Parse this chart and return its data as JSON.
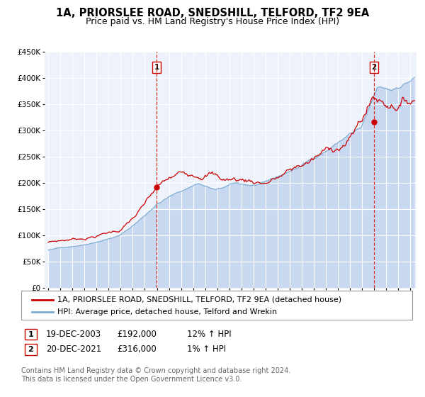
{
  "title": "1A, PRIORSLEE ROAD, SNEDSHILL, TELFORD, TF2 9EA",
  "subtitle": "Price paid vs. HM Land Registry's House Price Index (HPI)",
  "ylim": [
    0,
    450000
  ],
  "yticks": [
    0,
    50000,
    100000,
    150000,
    200000,
    250000,
    300000,
    350000,
    400000,
    450000
  ],
  "ytick_labels": [
    "£0",
    "£50K",
    "£100K",
    "£150K",
    "£200K",
    "£250K",
    "£300K",
    "£350K",
    "£400K",
    "£450K"
  ],
  "xlim_start": 1994.7,
  "xlim_end": 2025.5,
  "xticks": [
    1995,
    1996,
    1997,
    1998,
    1999,
    2000,
    2001,
    2002,
    2003,
    2004,
    2005,
    2006,
    2007,
    2008,
    2009,
    2010,
    2011,
    2012,
    2013,
    2014,
    2015,
    2016,
    2017,
    2018,
    2019,
    2020,
    2021,
    2022,
    2023,
    2024,
    2025
  ],
  "background_color": "#ffffff",
  "plot_bg_color": "#eef2fa",
  "grid_color": "#ffffff",
  "sale1_x": 2003.97,
  "sale1_y": 192000,
  "sale1_label": "1",
  "sale2_x": 2021.97,
  "sale2_y": 316000,
  "sale2_label": "2",
  "sale_color": "#cc0000",
  "hpi_color": "#7aaad0",
  "hpi_fill_color": "#c8d8f0",
  "legend_line1": "1A, PRIORSLEE ROAD, SNEDSHILL, TELFORD, TF2 9EA (detached house)",
  "legend_line2": "HPI: Average price, detached house, Telford and Wrekin",
  "table_row1": [
    "1",
    "19-DEC-2003",
    "£192,000",
    "12% ↑ HPI"
  ],
  "table_row2": [
    "2",
    "20-DEC-2021",
    "£316,000",
    "1% ↑ HPI"
  ],
  "footnote": "Contains HM Land Registry data © Crown copyright and database right 2024.\nThis data is licensed under the Open Government Licence v3.0.",
  "title_fontsize": 10.5,
  "subtitle_fontsize": 9,
  "tick_fontsize": 7.5,
  "legend_fontsize": 8,
  "table_fontsize": 8.5,
  "footnote_fontsize": 7
}
